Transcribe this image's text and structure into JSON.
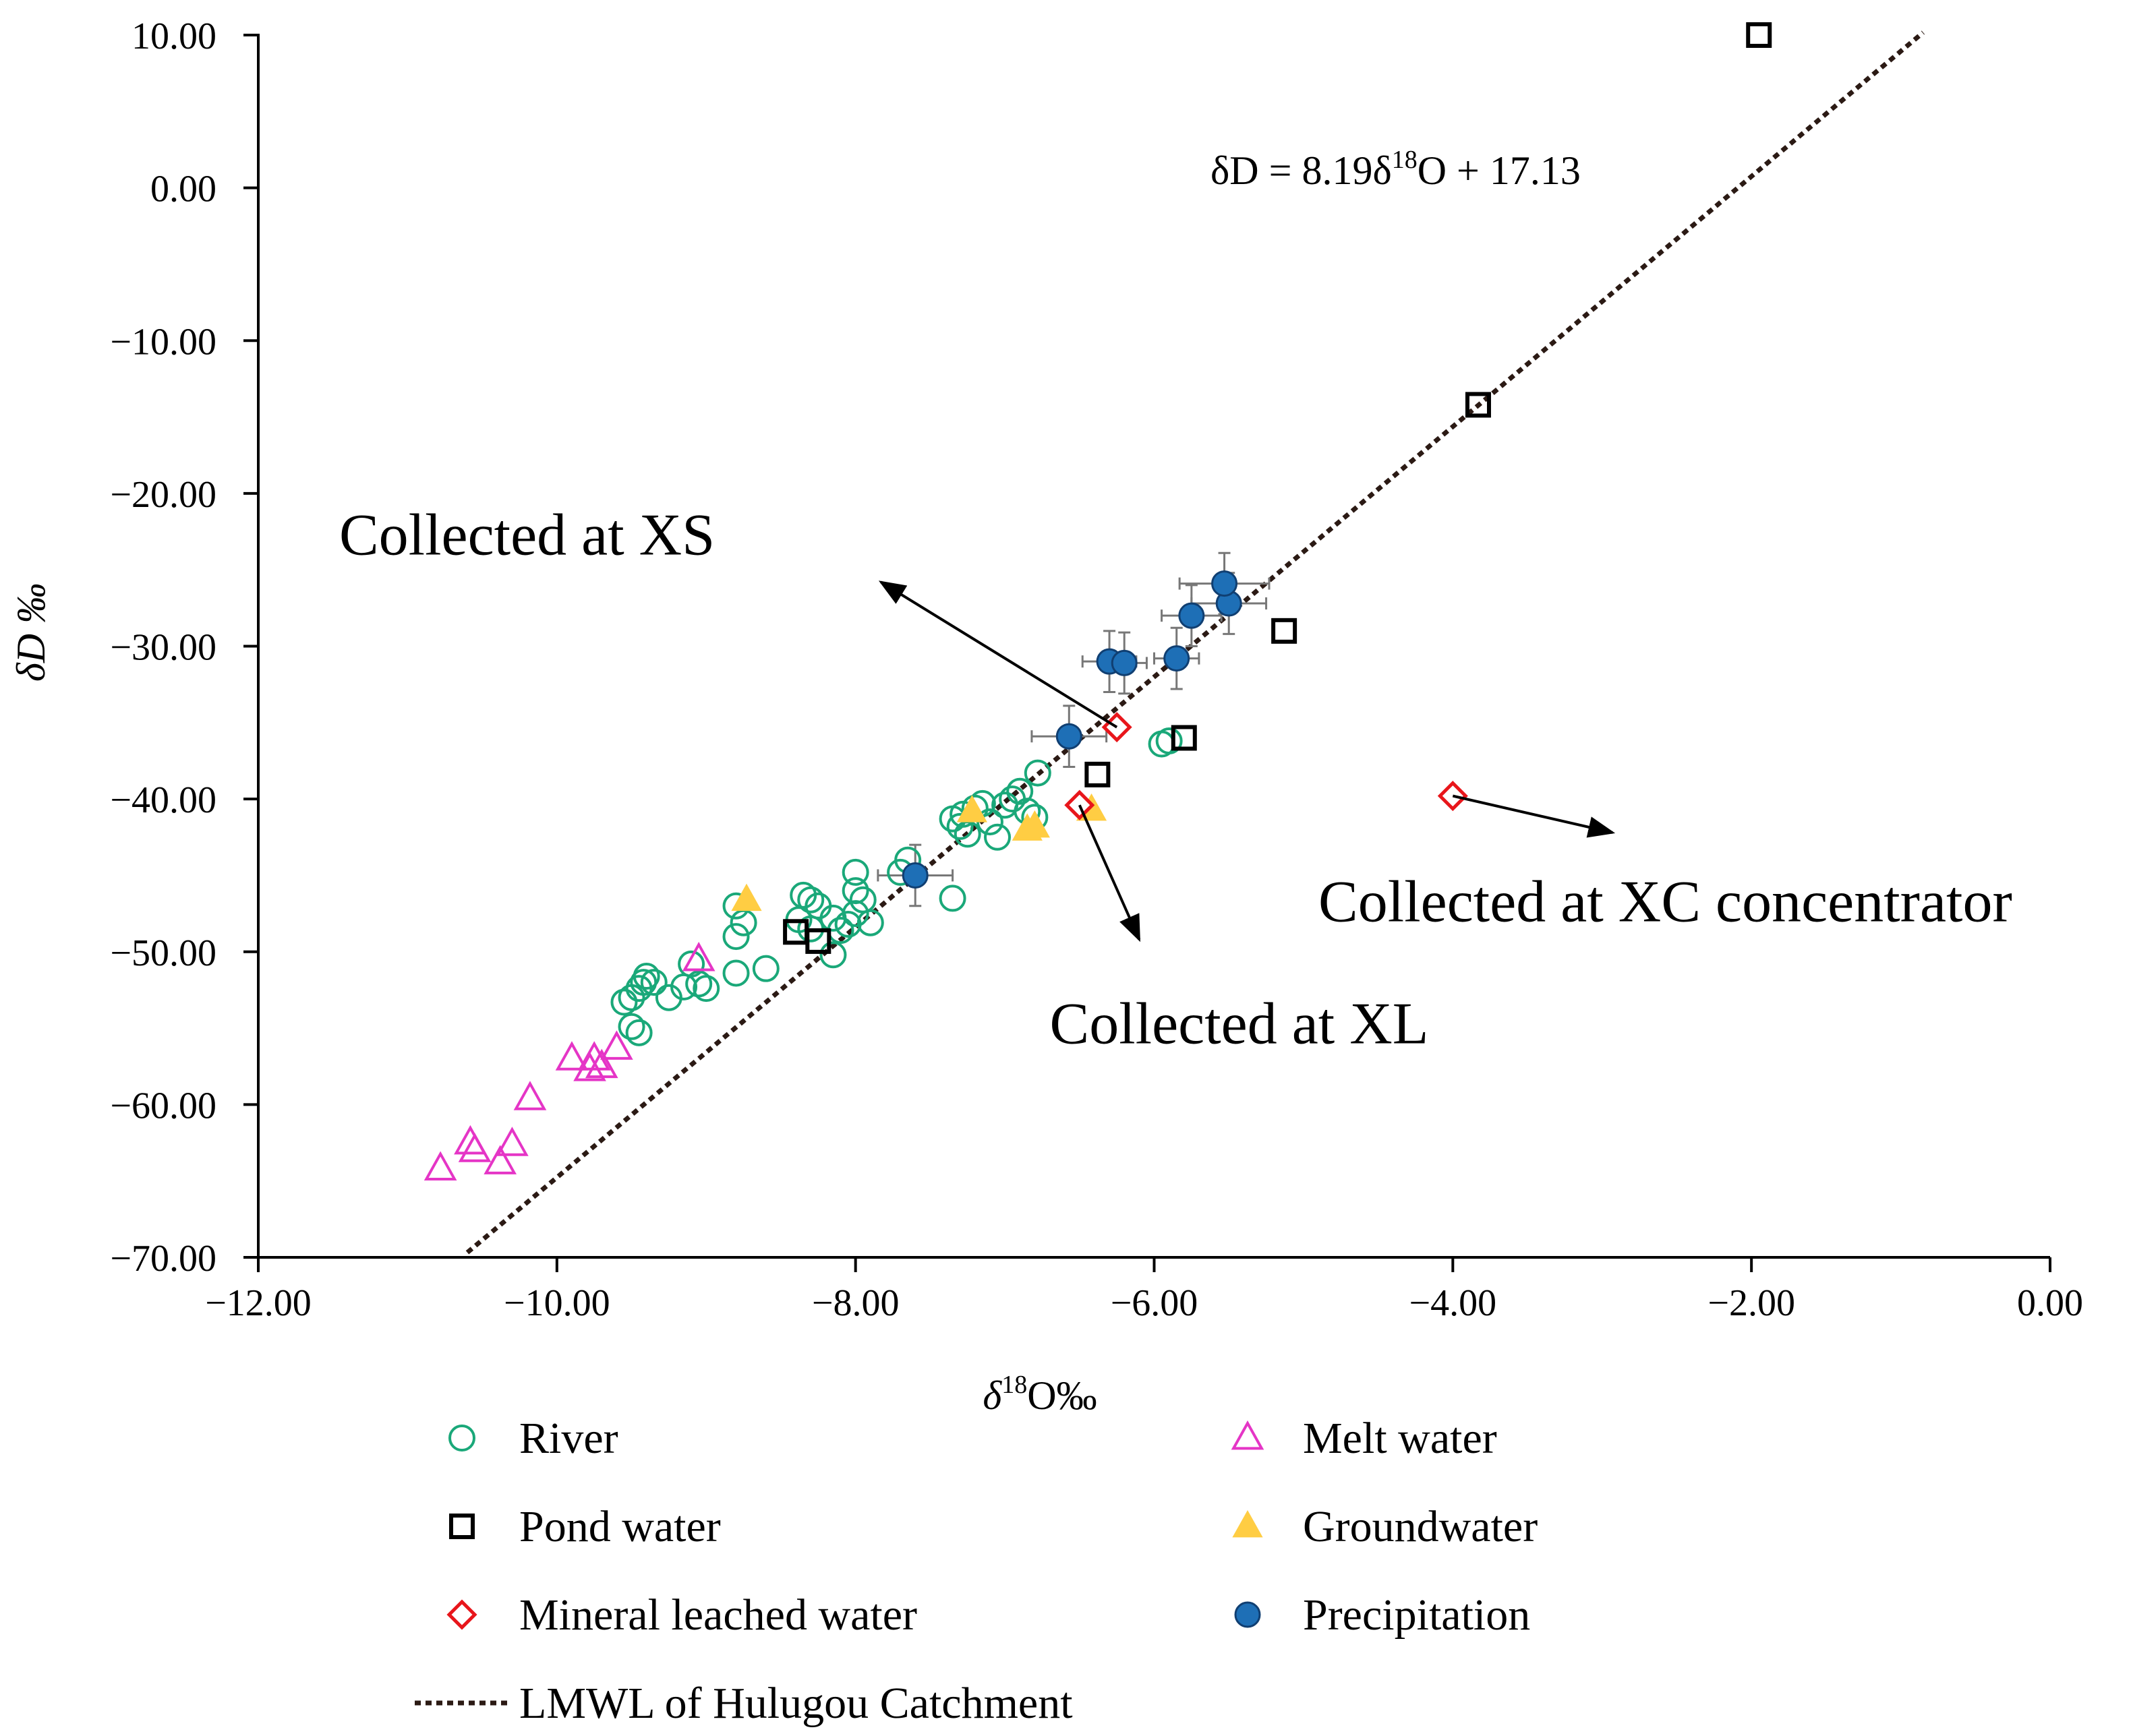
{
  "chart_data": {
    "type": "scatter",
    "title": "",
    "xlabel": {
      "prefix": "δ",
      "sup": "18",
      "suffix": "O‰"
    },
    "ylabel": "δD ‰",
    "xlim": [
      -12,
      0
    ],
    "ylim": [
      -70,
      10
    ],
    "xticks": [
      {
        "value": -12,
        "label": "−12.00"
      },
      {
        "value": -10,
        "label": "−10.00"
      },
      {
        "value": -8,
        "label": "−8.00"
      },
      {
        "value": -6,
        "label": "−6.00"
      },
      {
        "value": -4,
        "label": "−4.00"
      },
      {
        "value": -2,
        "label": "−2.00"
      },
      {
        "value": 0,
        "label": "0.00"
      }
    ],
    "yticks": [
      {
        "value": 10,
        "label": "10.00"
      },
      {
        "value": 0,
        "label": "0.00"
      },
      {
        "value": -10,
        "label": "−10.00"
      },
      {
        "value": -20,
        "label": "−20.00"
      },
      {
        "value": -30,
        "label": "−30.00"
      },
      {
        "value": -40,
        "label": "−40.00"
      },
      {
        "value": -50,
        "label": "−50.00"
      },
      {
        "value": -60,
        "label": "−60.00"
      },
      {
        "value": -70,
        "label": "−70.00"
      }
    ],
    "lmwl": {
      "slope": 8.19,
      "intercept": 17.13,
      "x_range": [
        -10.6,
        -0.85
      ],
      "color": "#2b1a14"
    },
    "equation": {
      "lead": "δD = 8.19δ",
      "sup": "18",
      "tail": "O + 17.13"
    },
    "series": [
      {
        "name": "River",
        "marker": "circle-open",
        "color": "#1aa879",
        "points": [
          [
            -9.55,
            -53.3
          ],
          [
            -9.5,
            -53.0
          ],
          [
            -9.45,
            -52.4
          ],
          [
            -9.42,
            -52.0
          ],
          [
            -9.4,
            -51.6
          ],
          [
            -9.35,
            -52.0
          ],
          [
            -9.5,
            -54.9
          ],
          [
            -9.45,
            -55.3
          ],
          [
            -9.25,
            -53.0
          ],
          [
            -9.15,
            -52.3
          ],
          [
            -9.05,
            -52.1
          ],
          [
            -9.0,
            -52.4
          ],
          [
            -9.1,
            -50.8
          ],
          [
            -8.8,
            -51.4
          ],
          [
            -8.6,
            -51.1
          ],
          [
            -8.8,
            -49.0
          ],
          [
            -8.75,
            -48.1
          ],
          [
            -8.8,
            -47.0
          ],
          [
            -8.35,
            -46.3
          ],
          [
            -8.3,
            -46.6
          ],
          [
            -8.25,
            -47.0
          ],
          [
            -8.38,
            -47.9
          ],
          [
            -8.3,
            -48.5
          ],
          [
            -8.15,
            -47.8
          ],
          [
            -8.1,
            -48.6
          ],
          [
            -8.05,
            -48.2
          ],
          [
            -8.0,
            -47.5
          ],
          [
            -7.95,
            -46.6
          ],
          [
            -8.0,
            -46.0
          ],
          [
            -8.0,
            -44.8
          ],
          [
            -7.9,
            -48.1
          ],
          [
            -8.15,
            -50.2
          ],
          [
            -7.7,
            -44.8
          ],
          [
            -7.65,
            -44.0
          ],
          [
            -7.35,
            -46.5
          ],
          [
            -7.35,
            -41.3
          ],
          [
            -7.3,
            -41.8
          ],
          [
            -7.25,
            -42.3
          ],
          [
            -7.28,
            -41.0
          ],
          [
            -7.2,
            -40.6
          ],
          [
            -7.15,
            -40.3
          ],
          [
            -7.1,
            -41.5
          ],
          [
            -7.0,
            -40.4
          ],
          [
            -6.95,
            -40.0
          ],
          [
            -6.9,
            -39.5
          ],
          [
            -6.85,
            -40.8
          ],
          [
            -6.8,
            -41.2
          ],
          [
            -7.05,
            -42.5
          ],
          [
            -6.78,
            -38.3
          ],
          [
            -5.95,
            -36.4
          ],
          [
            -5.9,
            -36.2
          ]
        ]
      },
      {
        "name": "Pond water",
        "marker": "square-open",
        "color": "#000000",
        "points": [
          [
            -1.95,
            10.0
          ],
          [
            -3.83,
            -14.2
          ],
          [
            -5.13,
            -29.0
          ],
          [
            -5.8,
            -36.0
          ],
          [
            -6.38,
            -38.4
          ],
          [
            -8.4,
            -48.7
          ],
          [
            -8.25,
            -49.3
          ]
        ]
      },
      {
        "name": "Mineral leached water",
        "marker": "diamond-open",
        "color": "#e8161b",
        "points": [
          [
            -6.25,
            -35.3
          ],
          [
            -6.5,
            -40.4
          ],
          [
            -4.0,
            -39.8
          ]
        ]
      },
      {
        "name": "Melt water",
        "marker": "triangle-open",
        "color": "#e535c6",
        "points": [
          [
            -10.78,
            -64.2
          ],
          [
            -10.58,
            -62.5
          ],
          [
            -10.55,
            -63.0
          ],
          [
            -10.38,
            -63.8
          ],
          [
            -10.3,
            -62.6
          ],
          [
            -10.18,
            -59.6
          ],
          [
            -9.9,
            -57.0
          ],
          [
            -9.78,
            -57.7
          ],
          [
            -9.75,
            -57.0
          ],
          [
            -9.7,
            -57.5
          ],
          [
            -9.6,
            -56.3
          ],
          [
            -9.05,
            -50.5
          ]
        ]
      },
      {
        "name": "Groundwater",
        "marker": "triangle-filled",
        "color": "#ffcd43",
        "points": [
          [
            -8.73,
            -46.6
          ],
          [
            -7.22,
            -40.8
          ],
          [
            -6.85,
            -42.0
          ],
          [
            -6.8,
            -41.8
          ],
          [
            -6.42,
            -40.7
          ]
        ]
      },
      {
        "name": "Precipitation",
        "marker": "circle-filled",
        "color": "#1e6fb6",
        "stroke": "#103f72",
        "points": [
          [
            -7.6,
            -45.0
          ],
          [
            -6.57,
            -35.9
          ],
          [
            -6.3,
            -31.0
          ],
          [
            -6.2,
            -31.1
          ],
          [
            -5.85,
            -30.8
          ],
          [
            -5.75,
            -28.0
          ],
          [
            -5.5,
            -27.2
          ],
          [
            -5.53,
            -25.9
          ]
        ],
        "error_x": [
          0.25,
          0.25,
          0.18,
          0.15,
          0.15,
          0.2,
          0.25,
          0.3
        ],
        "error_y": [
          2.0,
          2.0,
          2.0,
          2.0,
          2.0,
          2.0,
          2.0,
          2.0
        ]
      }
    ],
    "annotations": [
      {
        "text": "Collected at XS",
        "target": [
          -6.25,
          -35.3
        ],
        "arrow_head": [
          -7.83,
          -25.8
        ],
        "text_at": [
          -10.2,
          -24.0
        ],
        "anchor": "middle"
      },
      {
        "text": "Collected at XL",
        "target": [
          -6.5,
          -40.4
        ],
        "arrow_head": [
          -6.1,
          -49.2
        ],
        "text_at": [
          -6.7,
          -56.0
        ],
        "anchor": "start"
      },
      {
        "text": "Collected at XC  concentrator",
        "target": [
          -4.0,
          -39.8
        ],
        "arrow_head": [
          -2.93,
          -42.2
        ],
        "text_at": [
          -4.9,
          -48.0
        ],
        "anchor": "start"
      }
    ],
    "legend": {
      "position": "bottom",
      "items": [
        {
          "label": "River",
          "marker": "circle-open",
          "color": "#1aa879"
        },
        {
          "label": "Melt water",
          "marker": "triangle-open",
          "color": "#e535c6"
        },
        {
          "label": "Pond water",
          "marker": "square-open",
          "color": "#000000"
        },
        {
          "label": "Groundwater",
          "marker": "triangle-filled",
          "color": "#ffcd43"
        },
        {
          "label": "Mineral leached water",
          "marker": "diamond-open",
          "color": "#e8161b"
        },
        {
          "label": "Precipitation",
          "marker": "circle-filled",
          "color": "#1e6fb6"
        },
        {
          "label": "LMWL of Hulugou Catchment",
          "marker": "dotted-line",
          "color": "#2b1a14"
        }
      ]
    }
  }
}
